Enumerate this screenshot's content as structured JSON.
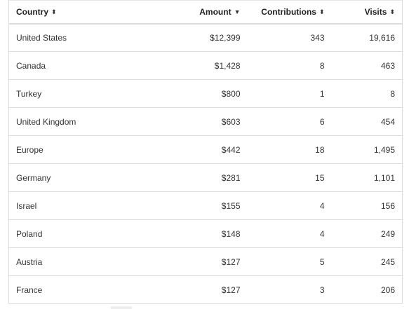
{
  "table": {
    "columns": [
      {
        "label": "Country",
        "sort_icon": "sort-both-icon",
        "glyph": "⬍"
      },
      {
        "label": "Amount",
        "sort_icon": "sort-desc-icon",
        "glyph": "▼"
      },
      {
        "label": "Contributions",
        "sort_icon": "sort-both-icon",
        "glyph": "⬍"
      },
      {
        "label": "Visits",
        "sort_icon": "sort-both-icon",
        "glyph": "⬍"
      }
    ],
    "rows": [
      {
        "country": "United States",
        "amount": "$12,399",
        "contributions": "343",
        "visits": "19,616"
      },
      {
        "country": "Canada",
        "amount": "$1,428",
        "contributions": "8",
        "visits": "463"
      },
      {
        "country": "Turkey",
        "amount": "$800",
        "contributions": "1",
        "visits": "8"
      },
      {
        "country": "United Kingdom",
        "amount": "$603",
        "contributions": "6",
        "visits": "454"
      },
      {
        "country": "Europe",
        "amount": "$442",
        "contributions": "18",
        "visits": "1,495"
      },
      {
        "country": "Germany",
        "amount": "$281",
        "contributions": "15",
        "visits": "1,101"
      },
      {
        "country": "Israel",
        "amount": "$155",
        "contributions": "4",
        "visits": "156"
      },
      {
        "country": "Poland",
        "amount": "$148",
        "contributions": "4",
        "visits": "249"
      },
      {
        "country": "Austria",
        "amount": "$127",
        "contributions": "5",
        "visits": "245"
      },
      {
        "country": "France",
        "amount": "$127",
        "contributions": "3",
        "visits": "206"
      }
    ]
  },
  "colors": {
    "border": "#dddddd",
    "text": "#333333",
    "header_text": "#222222"
  }
}
